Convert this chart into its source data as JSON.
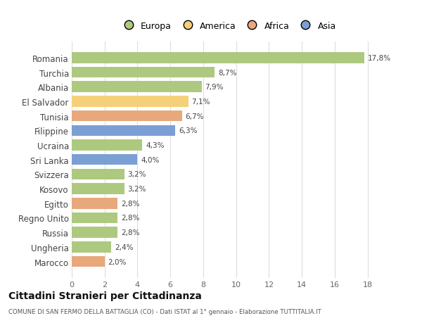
{
  "categories": [
    "Romania",
    "Turchia",
    "Albania",
    "El Salvador",
    "Tunisia",
    "Filippine",
    "Ucraina",
    "Sri Lanka",
    "Svizzera",
    "Kosovo",
    "Egitto",
    "Regno Unito",
    "Russia",
    "Ungheria",
    "Marocco"
  ],
  "values": [
    17.8,
    8.7,
    7.9,
    7.1,
    6.7,
    6.3,
    4.3,
    4.0,
    3.2,
    3.2,
    2.8,
    2.8,
    2.8,
    2.4,
    2.0
  ],
  "labels": [
    "17,8%",
    "8,7%",
    "7,9%",
    "7,1%",
    "6,7%",
    "6,3%",
    "4,3%",
    "4,0%",
    "3,2%",
    "3,2%",
    "2,8%",
    "2,8%",
    "2,8%",
    "2,4%",
    "2,0%"
  ],
  "colors": [
    "#adc97f",
    "#adc97f",
    "#adc97f",
    "#f5d07a",
    "#e8a87c",
    "#7b9fd4",
    "#adc97f",
    "#7b9fd4",
    "#adc97f",
    "#adc97f",
    "#e8a87c",
    "#adc97f",
    "#adc97f",
    "#adc97f",
    "#e8a87c"
  ],
  "legend_labels": [
    "Europa",
    "America",
    "Africa",
    "Asia"
  ],
  "legend_colors": [
    "#adc97f",
    "#f5d07a",
    "#e8a87c",
    "#7b9fd4"
  ],
  "title": "Cittadini Stranieri per Cittadinanza",
  "subtitle": "COMUNE DI SAN FERMO DELLA BATTAGLIA (CO) - Dati ISTAT al 1° gennaio - Elaborazione TUTTITALIA.IT",
  "xlim": [
    0,
    19
  ],
  "xticks": [
    0,
    2,
    4,
    6,
    8,
    10,
    12,
    14,
    16,
    18
  ],
  "background_color": "#ffffff",
  "grid_color": "#dddddd",
  "bar_height": 0.75
}
